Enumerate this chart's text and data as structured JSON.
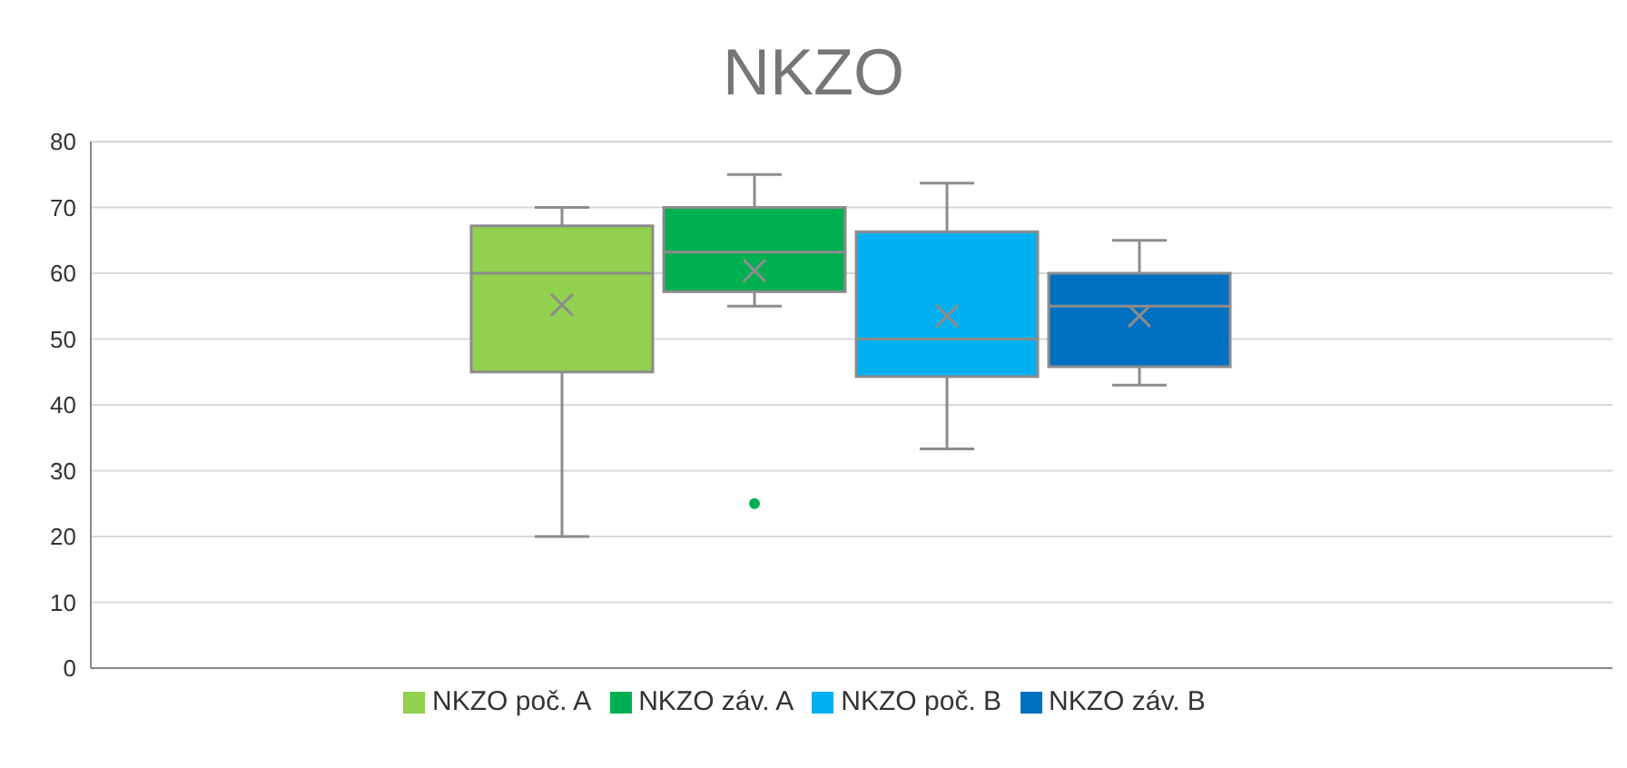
{
  "chart_data": {
    "type": "box",
    "title": "NKZO",
    "categories": [
      null
    ],
    "series": [
      {
        "name": "NKZO poč. A",
        "color": "#92d050",
        "boxes": [
          {
            "low": 20,
            "q1": 45,
            "median": 60,
            "q3": 67.2,
            "high": 70,
            "mean": 55.2
          }
        ]
      },
      {
        "name": "NKZO záv. A",
        "color": "#00b050",
        "boxes": [
          {
            "low": 55,
            "q1": 57.2,
            "median": 63.2,
            "q3": 70,
            "high": 75,
            "mean": 60.4,
            "outliers": [
              25
            ]
          }
        ]
      },
      {
        "name": "NKZO poč. B",
        "color": "#00b0f0",
        "boxes": [
          {
            "low": 33.3,
            "q1": 44.3,
            "median": 50,
            "q3": 66.3,
            "high": 73.7,
            "mean": 53.5
          }
        ]
      },
      {
        "name": "NKZO záv. B",
        "color": "#0070c0",
        "boxes": [
          {
            "low": 43,
            "q1": 45.8,
            "median": 55,
            "q3": 60,
            "high": 65,
            "mean": 53.5
          }
        ]
      }
    ],
    "ylim": [
      0,
      80
    ],
    "yticks": [
      0,
      10,
      20,
      30,
      40,
      50,
      60,
      70,
      80
    ],
    "grid": "y",
    "legend": "bottom"
  }
}
